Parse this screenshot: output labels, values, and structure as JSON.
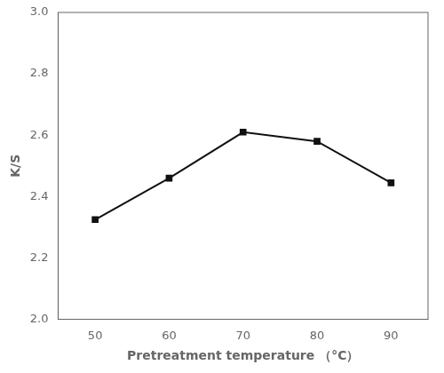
{
  "chart_data": {
    "type": "line",
    "x": [
      50,
      60,
      70,
      80,
      90
    ],
    "values": [
      2.325,
      2.46,
      2.61,
      2.58,
      2.445
    ],
    "xlabel": "Pretreatment temperature （°C）",
    "ylabel": "K/S",
    "xlim": [
      45,
      95
    ],
    "ylim": [
      2.0,
      3.0
    ],
    "xticks": [
      50,
      60,
      70,
      80,
      90
    ],
    "yticks": [
      {
        "value": 2.0,
        "label": "2.0"
      },
      2.2,
      2.4,
      2.6,
      2.8,
      {
        "value": 3.0,
        "label": "3.0"
      }
    ],
    "color": "#111111",
    "marker": "square",
    "grid": false
  }
}
